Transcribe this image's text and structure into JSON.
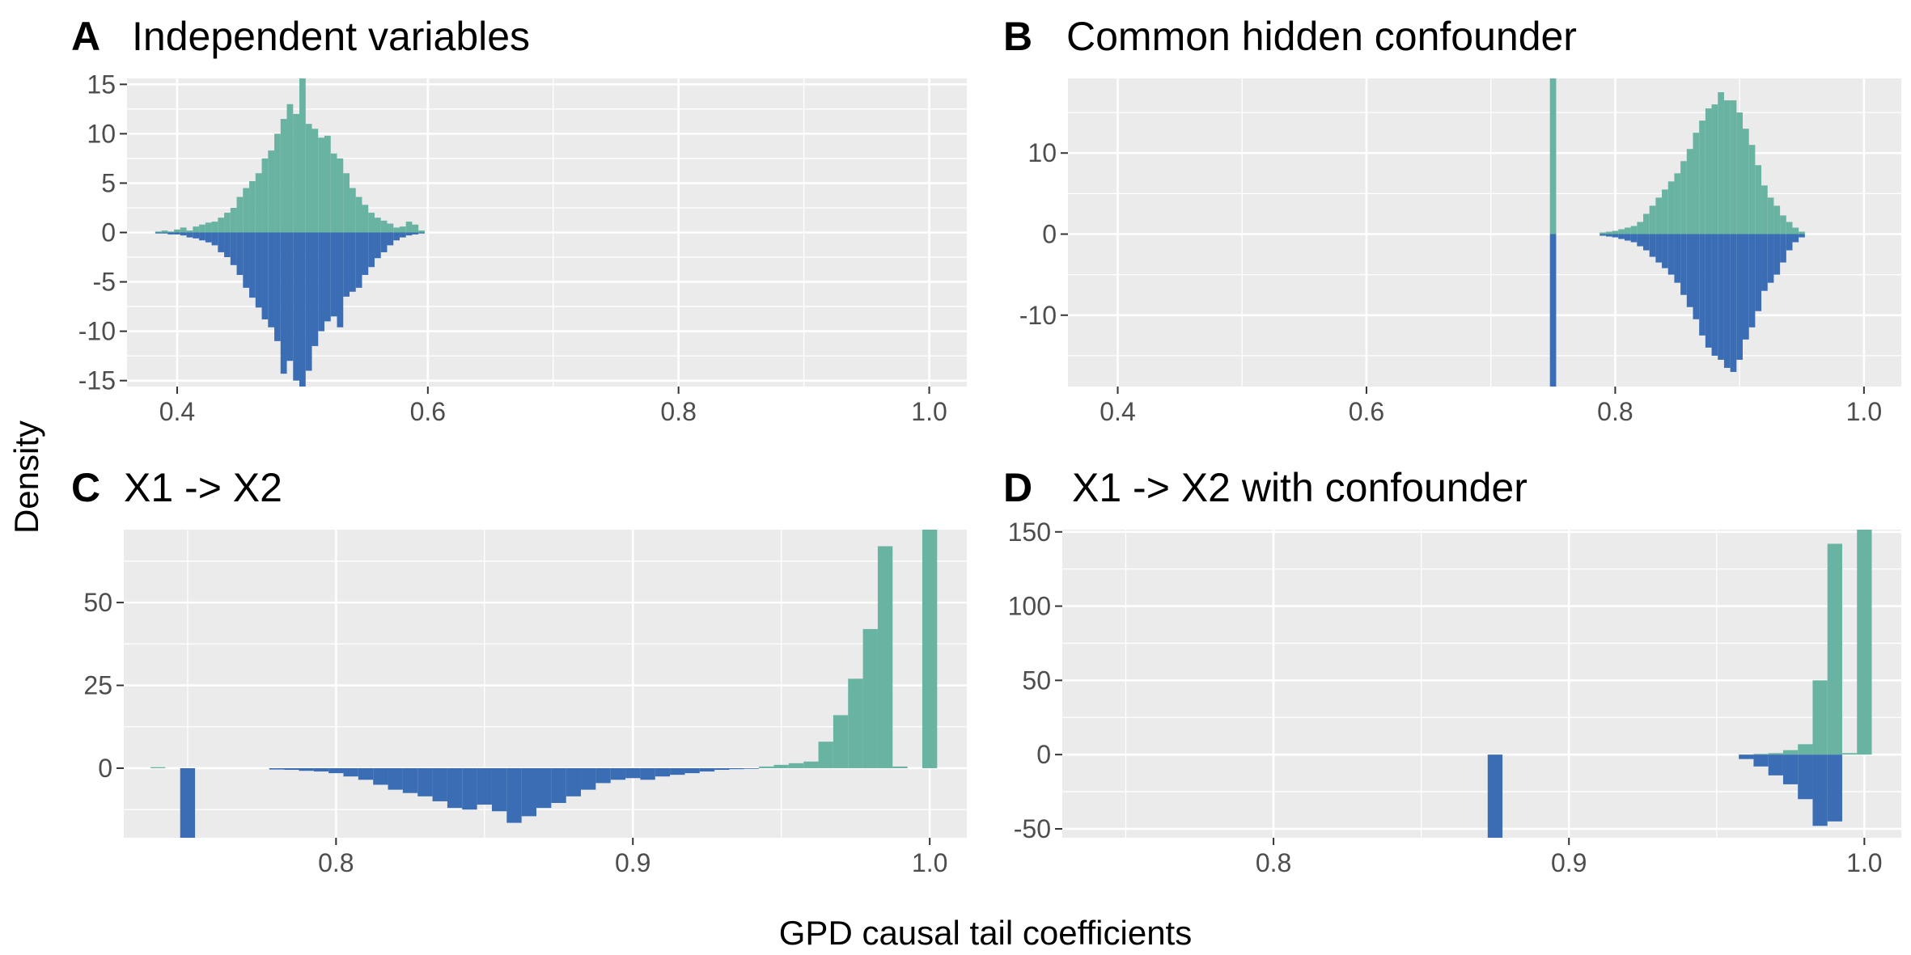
{
  "figure": {
    "xlabel": "GPD causal tail coefficients",
    "ylabel": "Density",
    "colors": {
      "upper": "#69b3a2",
      "lower": "#3a6db3",
      "panel_bg": "#ebebeb",
      "grid": "#ffffff",
      "tick_text": "#4d4d4d"
    }
  },
  "chart_data": [
    {
      "letter": "A",
      "title": "Independent variables",
      "type": "bar",
      "layout": "mirrored-histogram",
      "xlim": [
        0.36,
        1.03
      ],
      "ylim": [
        -15.6,
        15.6
      ],
      "xticks": [
        0.4,
        0.6,
        0.8,
        1.0
      ],
      "xtick_labels": [
        "0.4",
        "0.6",
        "0.8",
        "1.0"
      ],
      "yticks": [
        -15,
        -10,
        -5,
        0,
        5,
        10,
        15
      ],
      "ytick_labels": [
        "-15",
        "-10",
        "-5",
        "0",
        "5",
        "10",
        "15"
      ],
      "bin_width": 0.005,
      "series": [
        {
          "name": "",
          "direction": "up",
          "x": [
            0.385,
            0.39,
            0.395,
            0.4,
            0.405,
            0.41,
            0.415,
            0.42,
            0.425,
            0.43,
            0.435,
            0.44,
            0.445,
            0.45,
            0.455,
            0.46,
            0.465,
            0.47,
            0.475,
            0.48,
            0.485,
            0.49,
            0.495,
            0.5,
            0.505,
            0.51,
            0.515,
            0.52,
            0.525,
            0.53,
            0.535,
            0.54,
            0.545,
            0.55,
            0.555,
            0.56,
            0.565,
            0.57,
            0.575,
            0.58,
            0.585,
            0.59,
            0.595
          ],
          "values": [
            0.1,
            0.2,
            0.1,
            0.3,
            0.5,
            0.2,
            0.6,
            0.8,
            1.0,
            1.1,
            1.5,
            2.0,
            2.5,
            3.6,
            4.5,
            5.2,
            6.0,
            7.5,
            8.3,
            10.0,
            11.5,
            13.0,
            12.0,
            15.6,
            11.0,
            10.5,
            9.6,
            9.8,
            8.0,
            7.5,
            6.0,
            4.5,
            3.6,
            2.8,
            2.0,
            1.5,
            1.2,
            0.9,
            0.5,
            0.6,
            1.1,
            0.8,
            0.2
          ]
        },
        {
          "name": "",
          "direction": "down",
          "x": [
            0.385,
            0.39,
            0.395,
            0.4,
            0.405,
            0.41,
            0.415,
            0.42,
            0.425,
            0.43,
            0.435,
            0.44,
            0.445,
            0.45,
            0.455,
            0.46,
            0.465,
            0.47,
            0.475,
            0.48,
            0.485,
            0.49,
            0.495,
            0.5,
            0.505,
            0.51,
            0.515,
            0.52,
            0.525,
            0.53,
            0.535,
            0.54,
            0.545,
            0.55,
            0.555,
            0.56,
            0.565,
            0.57,
            0.575,
            0.58,
            0.585,
            0.59,
            0.595
          ],
          "values": [
            0.1,
            0.1,
            0.2,
            0.2,
            0.3,
            0.5,
            0.6,
            0.8,
            1.0,
            1.3,
            2.0,
            2.5,
            3.3,
            4.3,
            5.6,
            6.6,
            7.6,
            8.8,
            9.6,
            11.0,
            14.3,
            13.0,
            15.0,
            15.6,
            14.0,
            11.5,
            10.0,
            9.0,
            8.5,
            9.6,
            6.5,
            6.0,
            5.6,
            4.3,
            3.5,
            2.6,
            2.0,
            1.3,
            0.8,
            0.5,
            0.3,
            0.2,
            0.1
          ]
        }
      ]
    },
    {
      "letter": "B",
      "title": "Common hidden confounder",
      "type": "bar",
      "layout": "mirrored-histogram",
      "xlim": [
        0.36,
        1.03
      ],
      "ylim": [
        -18.8,
        19.2
      ],
      "xticks": [
        0.4,
        0.6,
        0.8,
        1.0
      ],
      "xtick_labels": [
        "0.4",
        "0.6",
        "0.8",
        "1.0"
      ],
      "yticks": [
        -10,
        0,
        10
      ],
      "ytick_labels": [
        "-10",
        "0",
        "10"
      ],
      "bin_width": 0.005,
      "series": [
        {
          "name": "",
          "direction": "up",
          "x": [
            0.75,
            0.79,
            0.795,
            0.8,
            0.805,
            0.81,
            0.815,
            0.82,
            0.825,
            0.83,
            0.835,
            0.84,
            0.845,
            0.85,
            0.855,
            0.86,
            0.865,
            0.87,
            0.875,
            0.88,
            0.885,
            0.89,
            0.895,
            0.9,
            0.905,
            0.91,
            0.915,
            0.92,
            0.925,
            0.93,
            0.935,
            0.94,
            0.945,
            0.95
          ],
          "values": [
            19.2,
            0.2,
            0.3,
            0.4,
            0.6,
            0.8,
            1.0,
            1.5,
            2.5,
            3.5,
            4.5,
            5.5,
            6.5,
            7.5,
            9.0,
            10.5,
            12.5,
            14.0,
            15.5,
            16.0,
            17.5,
            16.5,
            16.5,
            15.0,
            13.0,
            11.0,
            8.5,
            6.0,
            4.5,
            3.5,
            2.3,
            1.5,
            0.8,
            0.3
          ]
        },
        {
          "name": "",
          "direction": "down",
          "x": [
            0.75,
            0.79,
            0.795,
            0.8,
            0.805,
            0.81,
            0.815,
            0.82,
            0.825,
            0.83,
            0.835,
            0.84,
            0.845,
            0.85,
            0.855,
            0.86,
            0.865,
            0.87,
            0.875,
            0.88,
            0.885,
            0.89,
            0.895,
            0.9,
            0.905,
            0.91,
            0.915,
            0.92,
            0.925,
            0.93,
            0.935,
            0.94,
            0.945,
            0.95
          ],
          "values": [
            18.8,
            0.2,
            0.3,
            0.4,
            0.6,
            0.8,
            1.0,
            1.5,
            2.0,
            2.8,
            3.5,
            4.2,
            5.0,
            6.0,
            7.5,
            9.0,
            10.5,
            12.5,
            14.0,
            15.0,
            15.5,
            16.5,
            17.0,
            15.5,
            13.0,
            11.5,
            9.5,
            7.0,
            6.0,
            5.0,
            3.5,
            2.0,
            1.0,
            0.4
          ]
        }
      ]
    },
    {
      "letter": "C",
      "title": "X1 -> X2",
      "type": "bar",
      "layout": "mirrored-histogram",
      "xlim": [
        0.7285,
        1.0125
      ],
      "ylim": [
        -21.0,
        72.0
      ],
      "xticks": [
        0.8,
        0.9,
        1.0
      ],
      "xtick_labels": [
        "0.8",
        "0.9",
        "1.0"
      ],
      "yticks": [
        0,
        25,
        50
      ],
      "ytick_labels": [
        "0",
        "25",
        "50"
      ],
      "bin_width": 0.005,
      "series": [
        {
          "name": "",
          "direction": "up",
          "x": [
            0.74,
            0.945,
            0.95,
            0.955,
            0.96,
            0.965,
            0.97,
            0.975,
            0.98,
            0.985,
            0.99,
            1.0
          ],
          "values": [
            0.3,
            0.5,
            1.0,
            1.5,
            2.0,
            8.0,
            16.0,
            27.0,
            42.0,
            67.0,
            0.5,
            72.0
          ]
        },
        {
          "name": "",
          "direction": "down",
          "x": [
            0.75,
            0.78,
            0.785,
            0.79,
            0.795,
            0.8,
            0.805,
            0.81,
            0.815,
            0.82,
            0.825,
            0.83,
            0.835,
            0.84,
            0.845,
            0.85,
            0.855,
            0.86,
            0.865,
            0.87,
            0.875,
            0.88,
            0.885,
            0.89,
            0.895,
            0.9,
            0.905,
            0.91,
            0.915,
            0.92,
            0.925,
            0.93,
            0.935,
            0.94
          ],
          "values": [
            21.0,
            0.4,
            0.5,
            0.8,
            1.0,
            1.5,
            2.5,
            3.5,
            5.0,
            6.5,
            7.5,
            8.5,
            10.0,
            12.0,
            12.5,
            11.0,
            13.0,
            16.5,
            14.5,
            12.0,
            10.5,
            8.5,
            6.5,
            4.5,
            3.5,
            3.0,
            3.5,
            2.5,
            2.0,
            1.5,
            1.0,
            0.5,
            0.3,
            0.2
          ]
        }
      ]
    },
    {
      "letter": "D",
      "title": "X1 -> X2 with confounder",
      "type": "bar",
      "layout": "mirrored-histogram",
      "xlim": [
        0.7285,
        1.0125
      ],
      "ylim": [
        -56.0,
        151.5
      ],
      "xticks": [
        0.8,
        0.9,
        1.0
      ],
      "xtick_labels": [
        "0.8",
        "0.9",
        "1.0"
      ],
      "yticks": [
        -50,
        0,
        50,
        100,
        150
      ],
      "ytick_labels": [
        "-50",
        "0",
        "50",
        "100",
        "150"
      ],
      "bin_width": 0.005,
      "series": [
        {
          "name": "",
          "direction": "up",
          "x": [
            0.965,
            0.97,
            0.975,
            0.98,
            0.985,
            0.99,
            0.995,
            1.0
          ],
          "values": [
            0.5,
            1.0,
            3.0,
            7.0,
            50.0,
            142.0,
            1.0,
            151.5
          ]
        },
        {
          "name": "",
          "direction": "down",
          "x": [
            0.875,
            0.96,
            0.965,
            0.97,
            0.975,
            0.98,
            0.985,
            0.99
          ],
          "values": [
            56.0,
            3.0,
            8.0,
            14.0,
            20.0,
            30.0,
            48.0,
            45.0
          ]
        }
      ]
    }
  ]
}
